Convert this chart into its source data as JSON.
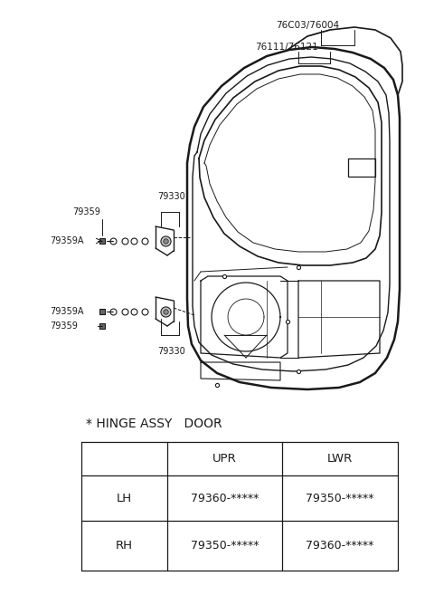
{
  "bg_color": "#ffffff",
  "line_color": "#1a1a1a",
  "fig_width": 4.8,
  "fig_height": 6.57,
  "dpi": 100,
  "title": "* HINGE ASSY   DOOR",
  "table": {
    "headers": [
      "",
      "UPR",
      "LWR"
    ],
    "rows": [
      [
        "LH",
        "79360-*****",
        "79350-*****"
      ],
      [
        "RH",
        "79350-*****",
        "79360-*****"
      ]
    ]
  }
}
